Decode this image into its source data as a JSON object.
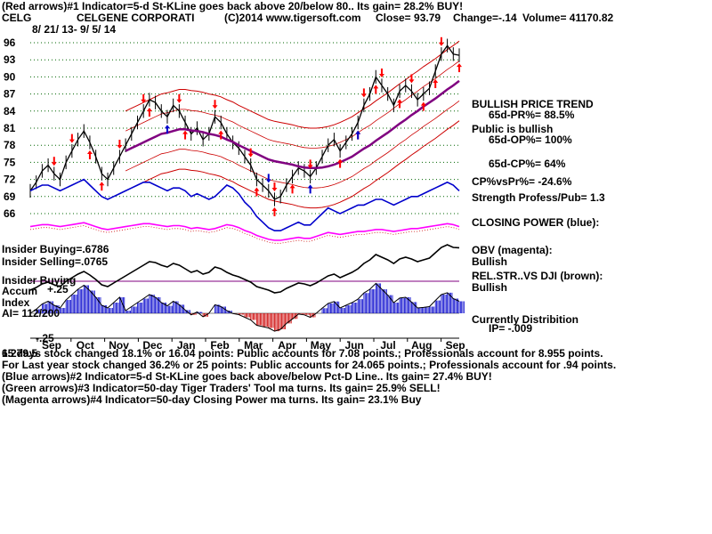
{
  "header": {
    "line1": "(Red arrows)#1 Indicator=5-d St-KLine goes back above 20/below 80.. Its gain= 28.2% BUY!",
    "symbol": "CELG",
    "company": "CELGENE CORPORATI",
    "source": "(C)2014 www.tigersoft.com",
    "close": "Close=  93.79",
    "change": "Change=-.14",
    "volume": "Volume= 41170.82",
    "date_range": "8/ 21/ 13- 9/ 5/ 14"
  },
  "right_panel": [
    {
      "text": "BULLISH PRICE TREND",
      "size": "big"
    },
    {
      "text": "65d-PR%= 88.5%",
      "size": "indent"
    },
    {
      "text": "Public is bullish",
      "size": "big"
    },
    {
      "text": "65d-OP%= 100%",
      "size": "indent"
    },
    {
      "text": "65d-CP%= 64%",
      "size": "indent"
    },
    {
      "text": "CP%vsPr%= -24.6%",
      "size": "big"
    },
    {
      "text": "Strength Profess/Pub= 1.3",
      "size": "big"
    },
    {
      "text": "CLOSING POWER (blue):",
      "size": "big"
    },
    {
      "text": "OBV (magenta):",
      "size": "big"
    },
    {
      "text": "Bullish",
      "size": "big"
    },
    {
      "text": "REL.STR..VS DJI (brown):",
      "size": "big"
    },
    {
      "text": "Bullish",
      "size": "big"
    },
    {
      "text": "Currently Distribition",
      "size": "big"
    },
    {
      "text": "IP= -.009",
      "size": "indent"
    }
  ],
  "left_panel": {
    "insider_buying_1": "Insider Buying=.6786",
    "insider_selling": "Insider Selling=.0765",
    "insider_buying_2": "Insider Buying",
    "accum": "Accum",
    "accum_tick": "+.25",
    "index": "Index",
    "ai": "AI= 112/200",
    "neg_tick": "-.25",
    "partial_tick": ".365",
    "bottom_code": "1.279.5"
  },
  "footer": [
    "       65 days stock changed  18.1% or  16.04 points:  Public accounts for  7.08 points.;  Professionals account for  8.955 points.",
    " For Last year stock changed  36.2% or  25 points:  Public accounts for  24.065 points.;  Professionals account for  .94 points.",
    "(Blue arrows)#2 Indicator=5-d St-KLine goes back above/below Pct-D Line.. Its gain= 27.4% BUY!",
    "(Green arrows)#3 Indicator=50-day Tiger Traders' Tool ma turns. Its gain= 25.9% SELL!",
    "(Magenta arrows)#4 Indicator=50-day Closing Power ma turns. Its gain= 23.1% Buy"
  ],
  "chart_data": {
    "type": "line",
    "x_months": [
      "Sep",
      "Oct",
      "Nov",
      "Dec",
      "Jan",
      "Feb",
      "Mar",
      "Apr",
      "May",
      "Jun",
      "Jul",
      "Aug",
      "Sep"
    ],
    "y_ticks": [
      96,
      93,
      90,
      87,
      84,
      81,
      78,
      75,
      72,
      69,
      66
    ],
    "ylim": [
      66,
      96
    ],
    "grid": true,
    "colors": {
      "price": "#000000",
      "ma_50": "#800080",
      "bands": "#cc0000",
      "closing_power": "#0000cc",
      "obv": "#ff00ff",
      "rel_str": "#000000",
      "accum_pos": "#0000cc",
      "accum_neg": "#cc0000",
      "arrow_buy": "#ff0000",
      "arrow_sell": "#ff0000",
      "arrow_blue": "#0000cc"
    },
    "price_close": [
      70,
      71.5,
      73.5,
      74.5,
      73,
      72,
      75,
      77,
      79,
      80.5,
      78.5,
      76,
      73,
      72,
      74,
      76,
      78,
      80,
      82,
      84,
      86,
      85.5,
      84,
      83,
      85,
      84,
      82,
      80,
      81,
      79,
      80,
      83,
      82,
      80,
      78.5,
      77.5,
      76,
      74.5,
      72,
      71,
      70,
      68.5,
      69,
      71,
      72.5,
      74,
      73.5,
      72.5,
      74,
      76,
      78,
      79,
      77,
      78.5,
      80,
      82,
      85,
      87,
      90,
      88.5,
      87,
      85,
      87.5,
      88.5,
      87.5,
      86,
      87,
      88,
      91,
      94,
      95.5,
      94,
      93.8
    ],
    "ma_50": [
      null,
      null,
      null,
      null,
      null,
      null,
      null,
      null,
      null,
      null,
      null,
      null,
      null,
      null,
      null,
      null,
      77,
      77.5,
      78,
      78.5,
      79,
      79.5,
      80,
      80.2,
      80.5,
      80.8,
      80.8,
      80.6,
      80.5,
      80.3,
      80,
      79.8,
      79.5,
      79,
      78.6,
      78,
      77.5,
      77,
      76.5,
      76,
      75.5,
      75.2,
      75,
      74.8,
      74.6,
      74.3,
      74.1,
      74,
      74,
      74.1,
      74.3,
      74.6,
      75,
      75.5,
      76,
      76.7,
      77.4,
      78,
      78.8,
      79.5,
      80.2,
      81,
      81.8,
      82.5,
      83.3,
      84,
      84.8,
      85.5,
      86.2,
      87,
      87.8,
      88.5,
      89.3
    ],
    "closing_power": [
      70,
      70.5,
      71,
      71,
      70.5,
      70,
      70.5,
      71,
      71.5,
      72,
      71,
      70,
      69,
      68.5,
      69,
      69.5,
      70,
      70.5,
      71,
      71.5,
      71.5,
      71,
      70.5,
      70,
      70.5,
      70.5,
      70,
      69,
      69.5,
      69,
      68.5,
      69,
      70,
      71,
      70.5,
      69.5,
      68,
      67,
      65.5,
      64.5,
      63.5,
      63,
      63,
      63.5,
      64,
      64.5,
      64,
      64,
      65,
      66,
      67,
      66.5,
      66,
      66.5,
      67,
      67.5,
      67.5,
      68,
      68.5,
      68.5,
      68,
      67.5,
      68,
      68.5,
      69,
      69,
      69.5,
      70,
      70.5,
      71,
      71.5,
      71,
      70
    ],
    "arrows_up_red_idx": [
      10,
      12,
      20,
      26,
      32,
      38,
      41,
      44,
      52,
      55,
      58,
      62,
      66,
      68,
      72
    ],
    "arrows_down_red_idx": [
      4,
      7,
      15,
      19,
      25,
      31,
      37,
      41,
      47,
      56,
      59,
      64,
      69
    ],
    "arrows_blue_idx": [
      23,
      40,
      47,
      55
    ]
  }
}
